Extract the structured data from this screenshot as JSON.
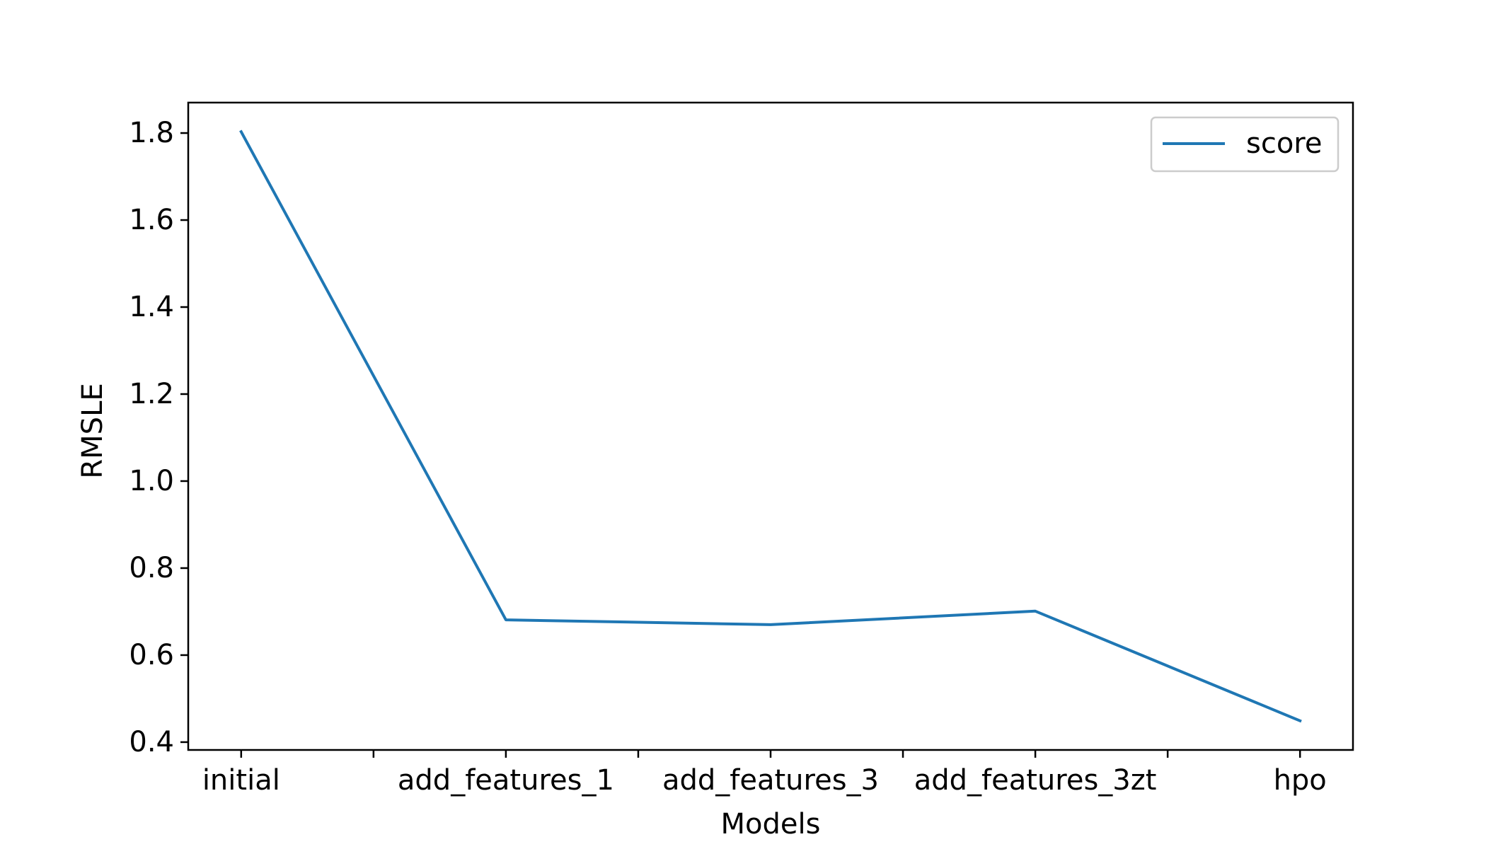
{
  "chart_data": {
    "type": "line",
    "title": "",
    "xlabel": "Models",
    "ylabel": "RMSLE",
    "x_positions": [
      0,
      0.5,
      1,
      1.5,
      2,
      2.5,
      3,
      3.5,
      4
    ],
    "x_tick_labels": [
      "initial",
      "",
      "add_features_1",
      "",
      "add_features_3",
      "",
      "add_features_3zt",
      "",
      "hpo"
    ],
    "series": [
      {
        "name": "score",
        "color": "#1f77b4",
        "x": [
          0,
          1,
          2,
          3,
          4
        ],
        "values": [
          1.803,
          0.681,
          0.67,
          0.701,
          0.449
        ]
      }
    ],
    "xlim": [
      -0.2,
      4.2
    ],
    "ylim": [
      0.382,
      1.87
    ],
    "yticks": [
      0.4,
      0.6,
      0.8,
      1.0,
      1.2,
      1.4,
      1.6,
      1.8
    ],
    "ytick_labels": [
      "0.4",
      "0.6",
      "0.8",
      "1.0",
      "1.2",
      "1.4",
      "1.6",
      "1.8"
    ],
    "grid": false,
    "legend": {
      "placement": "top-right",
      "entries": [
        "score"
      ]
    }
  }
}
